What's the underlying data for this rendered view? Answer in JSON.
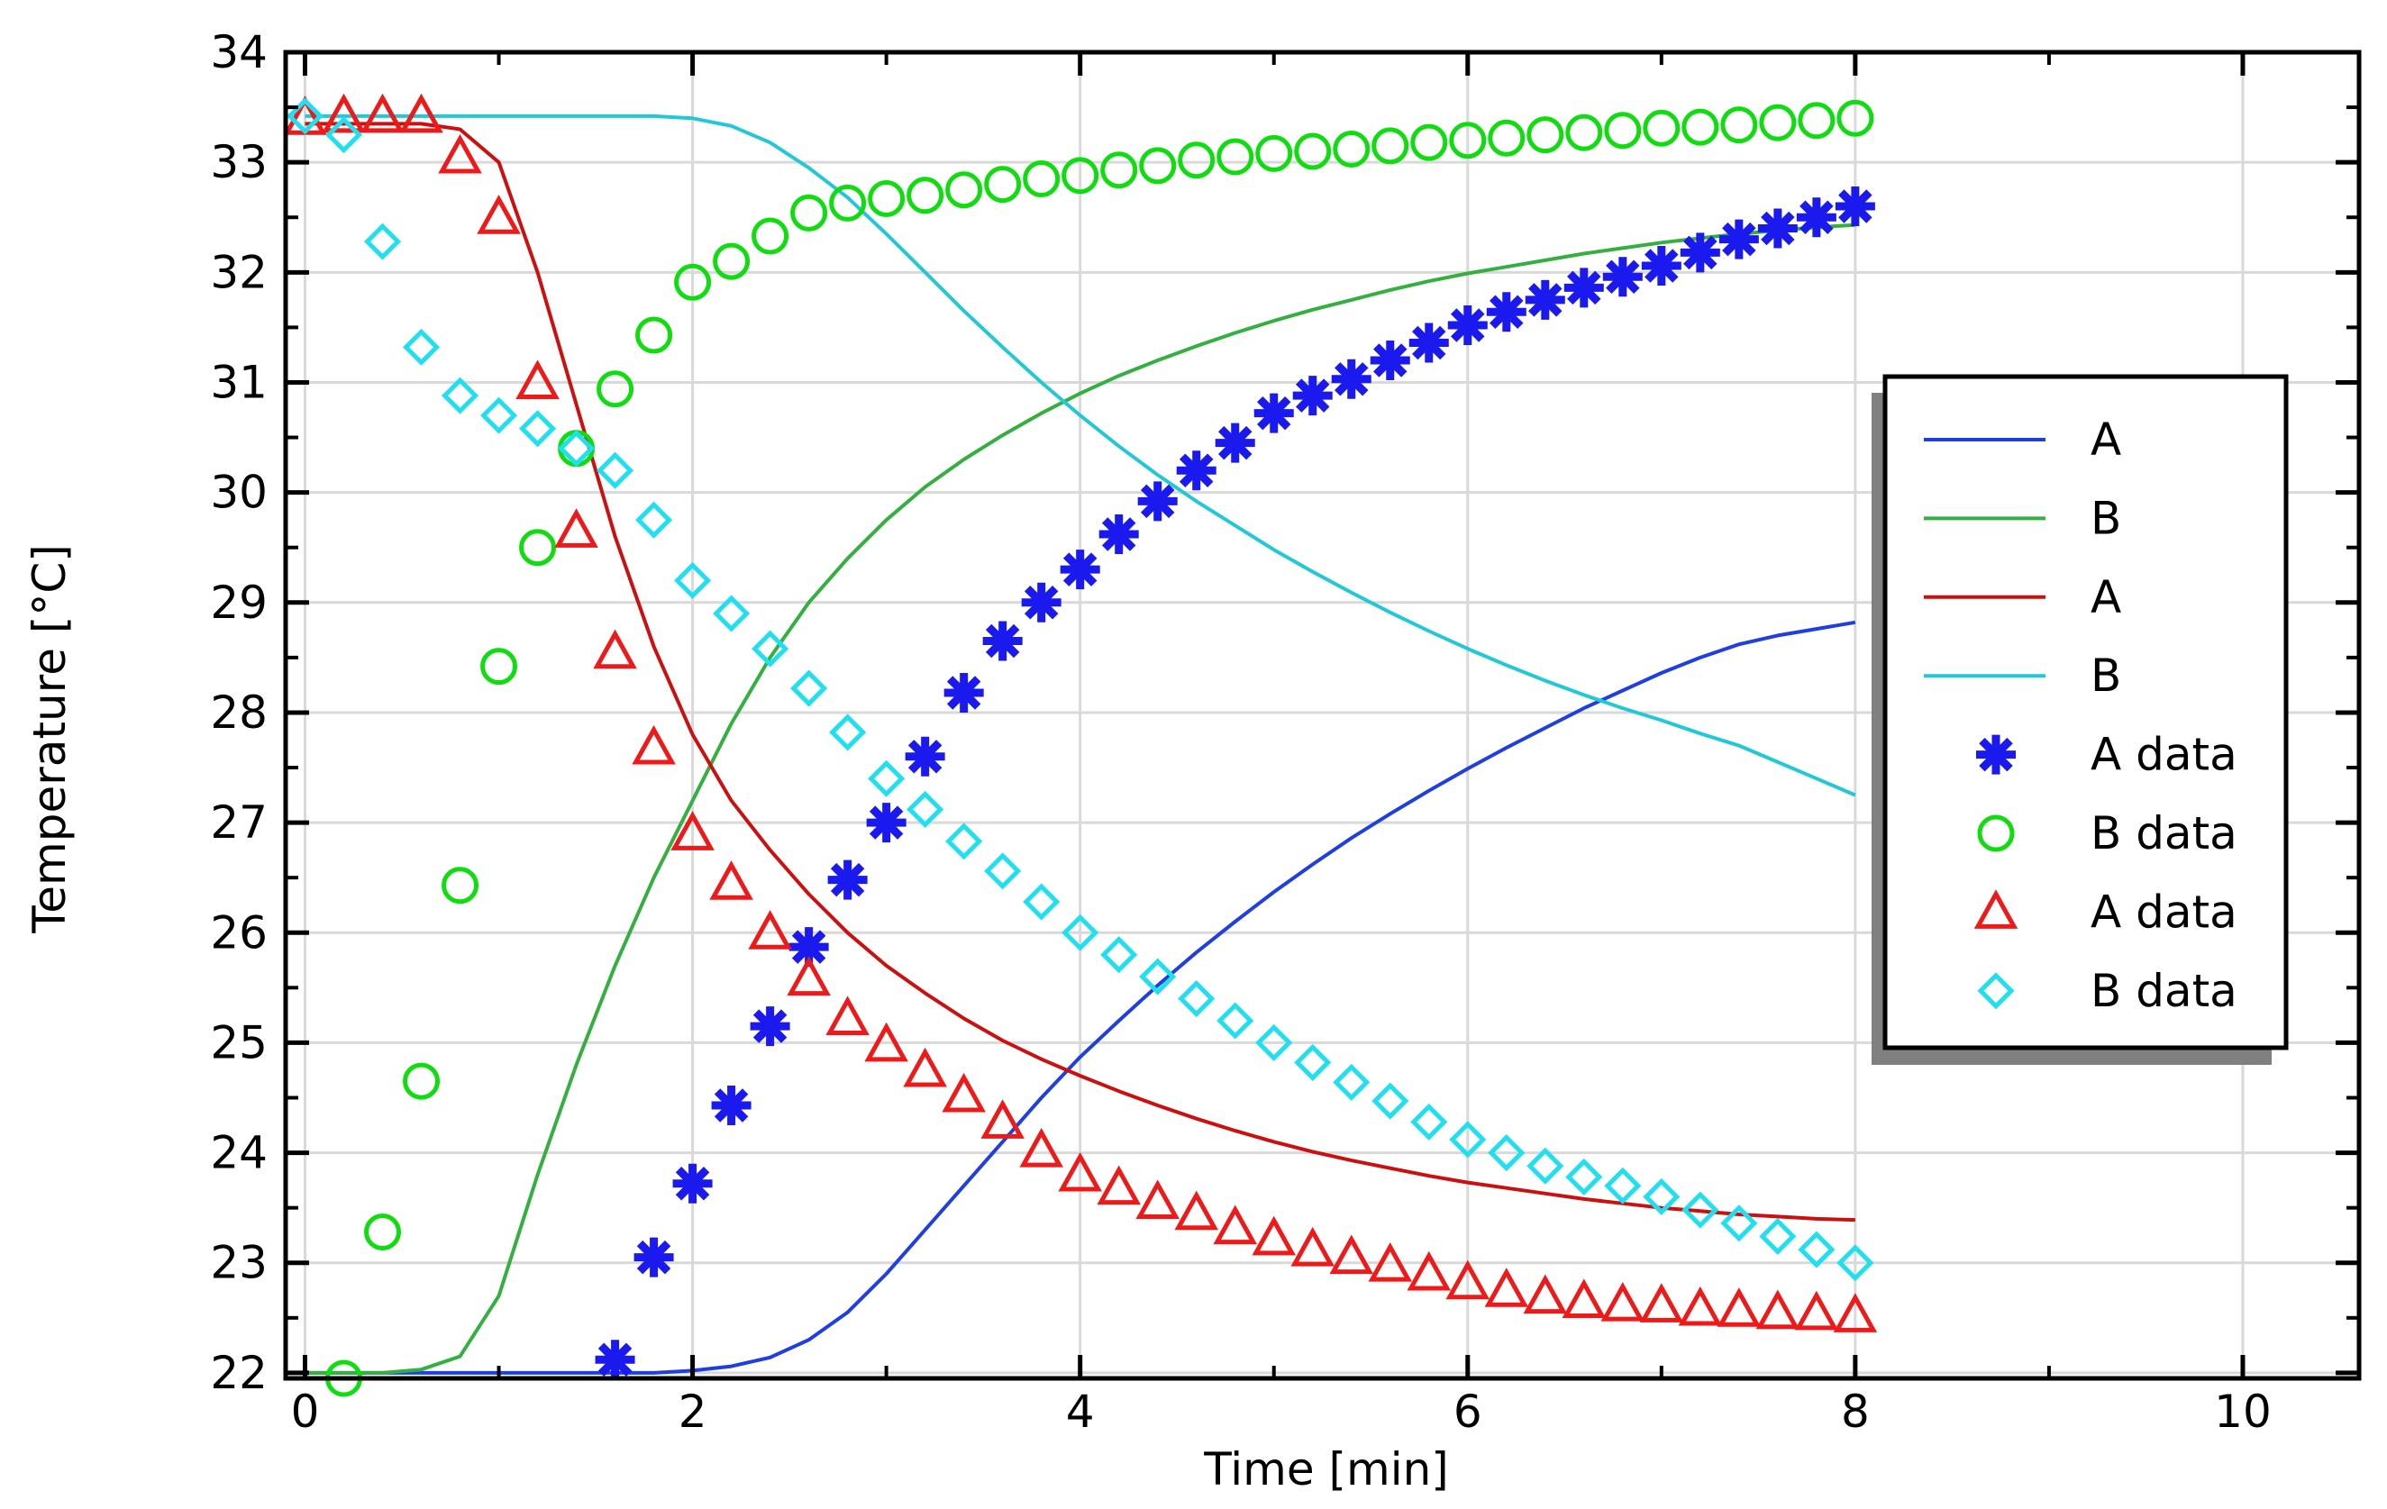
{
  "chart_data": {
    "type": "line",
    "title": "",
    "xlabel": "Time [min]",
    "ylabel": "Temperature [°C]",
    "xlim": [
      -0.1,
      10.6
    ],
    "ylim": [
      21.95,
      34.0
    ],
    "grid": true,
    "legend_position": "right",
    "x_ticks": [
      0,
      2,
      4,
      6,
      8,
      10
    ],
    "y_ticks": [
      22,
      23,
      24,
      25,
      26,
      27,
      28,
      29,
      30,
      31,
      32,
      33,
      34
    ],
    "x_tick_labels": [
      "0",
      "2",
      "4",
      "6",
      "8",
      "10"
    ],
    "y_tick_labels": [
      "22",
      "23",
      "24",
      "25",
      "26",
      "27",
      "28",
      "29",
      "30",
      "31",
      "32",
      "33",
      "34"
    ],
    "series": [
      {
        "name": "A",
        "kind": "line",
        "color": "#1f3fe0",
        "x": [
          0,
          0.2,
          0.4,
          0.6,
          0.8,
          1.0,
          1.2,
          1.4,
          1.6,
          1.8,
          2.0,
          2.2,
          2.4,
          2.6,
          2.8,
          3.0,
          3.2,
          3.4,
          3.6,
          3.8,
          4.0,
          4.2,
          4.4,
          4.6,
          4.8,
          5.0,
          5.2,
          5.4,
          5.6,
          5.8,
          6.0,
          6.2,
          6.4,
          6.6,
          6.8,
          7.0,
          7.2,
          7.4,
          7.6,
          7.8,
          8.0
        ],
        "values": [
          22,
          22,
          22,
          22,
          22,
          22,
          22,
          22,
          22,
          22.0,
          22.02,
          22.06,
          22.14,
          22.3,
          22.55,
          22.9,
          23.3,
          23.7,
          24.1,
          24.5,
          24.87,
          25.2,
          25.52,
          25.82,
          26.1,
          26.37,
          26.62,
          26.86,
          27.08,
          27.29,
          27.49,
          27.68,
          27.86,
          28.04,
          28.2,
          28.36,
          28.5,
          28.62,
          28.7,
          28.76,
          28.82
        ]
      },
      {
        "name": "B",
        "kind": "line",
        "color": "#33b040",
        "x": [
          0,
          0.2,
          0.4,
          0.6,
          0.8,
          1.0,
          1.2,
          1.4,
          1.6,
          1.8,
          2.0,
          2.2,
          2.4,
          2.6,
          2.8,
          3.0,
          3.2,
          3.4,
          3.6,
          3.8,
          4.0,
          4.2,
          4.4,
          4.6,
          4.8,
          5.0,
          5.2,
          5.4,
          5.6,
          5.8,
          6.0,
          6.2,
          6.4,
          6.6,
          6.8,
          7.0,
          7.2,
          7.4,
          7.6,
          7.8,
          8.0
        ],
        "values": [
          22,
          22,
          22,
          22.03,
          22.15,
          22.7,
          23.8,
          24.8,
          25.7,
          26.5,
          27.2,
          27.9,
          28.5,
          29.0,
          29.4,
          29.75,
          30.05,
          30.3,
          30.52,
          30.72,
          30.9,
          31.06,
          31.2,
          31.33,
          31.45,
          31.56,
          31.66,
          31.75,
          31.84,
          31.92,
          31.99,
          32.05,
          32.11,
          32.17,
          32.22,
          32.27,
          32.31,
          32.35,
          32.38,
          32.41,
          32.43
        ]
      },
      {
        "name": "A",
        "kind": "line",
        "color": "#cc1010",
        "x": [
          0,
          0.2,
          0.4,
          0.6,
          0.8,
          1.0,
          1.2,
          1.4,
          1.6,
          1.8,
          2.0,
          2.2,
          2.4,
          2.6,
          2.8,
          3.0,
          3.2,
          3.4,
          3.6,
          3.8,
          4.0,
          4.2,
          4.4,
          4.6,
          4.8,
          5.0,
          5.2,
          5.4,
          5.6,
          5.8,
          6.0,
          6.2,
          6.4,
          6.6,
          6.8,
          7.0,
          7.2,
          7.4,
          7.6,
          7.8,
          8.0
        ],
        "values": [
          33.35,
          33.35,
          33.35,
          33.35,
          33.3,
          33.0,
          32.0,
          30.8,
          29.6,
          28.6,
          27.8,
          27.2,
          26.75,
          26.35,
          26.0,
          25.7,
          25.45,
          25.22,
          25.02,
          24.85,
          24.7,
          24.56,
          24.43,
          24.31,
          24.2,
          24.1,
          24.01,
          23.93,
          23.86,
          23.79,
          23.73,
          23.68,
          23.63,
          23.58,
          23.54,
          23.5,
          23.47,
          23.44,
          23.42,
          23.4,
          23.39
        ]
      },
      {
        "name": "B",
        "kind": "line",
        "color": "#22c8d8",
        "x": [
          0,
          0.2,
          0.4,
          0.6,
          0.8,
          1.0,
          1.2,
          1.4,
          1.6,
          1.8,
          2.0,
          2.2,
          2.4,
          2.6,
          2.8,
          3.0,
          3.2,
          3.4,
          3.6,
          3.8,
          4.0,
          4.2,
          4.4,
          4.6,
          4.8,
          5.0,
          5.2,
          5.4,
          5.6,
          5.8,
          6.0,
          6.2,
          6.4,
          6.6,
          6.8,
          7.0,
          7.2,
          7.4,
          7.6,
          7.8,
          8.0
        ],
        "values": [
          33.42,
          33.42,
          33.42,
          33.42,
          33.42,
          33.42,
          33.42,
          33.42,
          33.42,
          33.42,
          33.4,
          33.33,
          33.18,
          32.95,
          32.68,
          32.35,
          32.0,
          31.65,
          31.32,
          31.0,
          30.7,
          30.42,
          30.16,
          29.92,
          29.7,
          29.48,
          29.28,
          29.09,
          28.91,
          28.74,
          28.58,
          28.43,
          28.29,
          28.16,
          28.04,
          27.93,
          27.81,
          27.7,
          27.55,
          27.4,
          27.25
        ]
      },
      {
        "name": "A data",
        "kind": "marker",
        "marker": "asterisk",
        "color": "#1a1aee",
        "x": [
          1.6,
          1.8,
          2.0,
          2.2,
          2.4,
          2.6,
          2.8,
          3.0,
          3.2,
          3.4,
          3.6,
          3.8,
          4.0,
          4.2,
          4.4,
          4.6,
          4.8,
          5.0,
          5.2,
          5.4,
          5.6,
          5.8,
          6.0,
          6.2,
          6.4,
          6.6,
          6.8,
          7.0,
          7.2,
          7.4,
          7.6,
          7.8,
          8.0
        ],
        "values": [
          22.12,
          23.05,
          23.72,
          24.43,
          25.15,
          25.87,
          26.48,
          27.0,
          27.6,
          28.18,
          28.65,
          29.0,
          29.3,
          29.62,
          29.92,
          30.2,
          30.45,
          30.72,
          30.88,
          31.03,
          31.2,
          31.36,
          31.52,
          31.64,
          31.75,
          31.86,
          31.96,
          32.06,
          32.18,
          32.3,
          32.4,
          32.5,
          32.6
        ]
      },
      {
        "name": "B data",
        "kind": "marker",
        "marker": "circle",
        "color": "#10dd10",
        "x": [
          0.2,
          0.4,
          0.6,
          0.8,
          1.0,
          1.2,
          1.4,
          1.6,
          1.8,
          2.0,
          2.2,
          2.4,
          2.6,
          2.8,
          3.0,
          3.2,
          3.4,
          3.6,
          3.8,
          4.0,
          4.2,
          4.4,
          4.6,
          4.8,
          5.0,
          5.2,
          5.4,
          5.6,
          5.8,
          6.0,
          6.2,
          6.4,
          6.6,
          6.8,
          7.0,
          7.2,
          7.4,
          7.6,
          7.8,
          8.0
        ],
        "values": [
          21.95,
          23.28,
          24.65,
          26.43,
          28.42,
          29.5,
          30.4,
          30.94,
          31.43,
          31.91,
          32.1,
          32.33,
          32.54,
          32.63,
          32.67,
          32.7,
          32.75,
          32.8,
          32.85,
          32.88,
          32.93,
          32.97,
          33.02,
          33.05,
          33.08,
          33.1,
          33.12,
          33.15,
          33.18,
          33.2,
          33.22,
          33.25,
          33.27,
          33.29,
          33.31,
          33.32,
          33.34,
          33.36,
          33.38,
          33.4
        ]
      },
      {
        "name": "A data",
        "kind": "marker",
        "marker": "triangle",
        "color": "#ee1a1a",
        "x": [
          0,
          0.2,
          0.4,
          0.6,
          0.8,
          1.0,
          1.2,
          1.4,
          1.6,
          1.8,
          2.0,
          2.2,
          2.4,
          2.6,
          2.8,
          3.0,
          3.2,
          3.4,
          3.6,
          3.8,
          4.0,
          4.2,
          4.4,
          4.6,
          4.8,
          5.0,
          5.2,
          5.4,
          5.6,
          5.8,
          6.0,
          6.2,
          6.4,
          6.6,
          6.8,
          7.0,
          7.2,
          7.4,
          7.6,
          7.8,
          8.0
        ],
        "values": [
          33.4,
          33.42,
          33.42,
          33.42,
          33.05,
          32.5,
          31.0,
          29.65,
          28.55,
          27.68,
          26.9,
          26.45,
          26.0,
          25.58,
          25.22,
          24.98,
          24.75,
          24.52,
          24.28,
          24.02,
          23.8,
          23.68,
          23.55,
          23.45,
          23.32,
          23.22,
          23.12,
          23.05,
          22.98,
          22.9,
          22.82,
          22.75,
          22.69,
          22.65,
          22.62,
          22.61,
          22.58,
          22.57,
          22.55,
          22.54,
          22.52
        ]
      },
      {
        "name": "B data",
        "kind": "marker",
        "marker": "diamond",
        "color": "#20e0f0",
        "x": [
          0,
          0.2,
          0.4,
          0.6,
          0.8,
          1.0,
          1.2,
          1.4,
          1.6,
          1.8,
          2.0,
          2.2,
          2.4,
          2.6,
          2.8,
          3.0,
          3.2,
          3.4,
          3.6,
          3.8,
          4.0,
          4.2,
          4.4,
          4.6,
          4.8,
          5.0,
          5.2,
          5.4,
          5.6,
          5.8,
          6.0,
          6.2,
          6.4,
          6.6,
          6.8,
          7.0,
          7.2,
          7.4,
          7.6,
          7.8,
          8.0
        ],
        "values": [
          33.42,
          33.25,
          32.28,
          31.32,
          30.88,
          30.7,
          30.58,
          30.4,
          30.2,
          29.75,
          29.2,
          28.9,
          28.58,
          28.22,
          27.82,
          27.4,
          27.12,
          26.83,
          26.56,
          26.28,
          26.0,
          25.8,
          25.6,
          25.4,
          25.2,
          25.0,
          24.82,
          24.64,
          24.47,
          24.28,
          24.12,
          24.0,
          23.88,
          23.78,
          23.7,
          23.6,
          23.48,
          23.36,
          23.24,
          23.12,
          23.0
        ]
      }
    ]
  }
}
